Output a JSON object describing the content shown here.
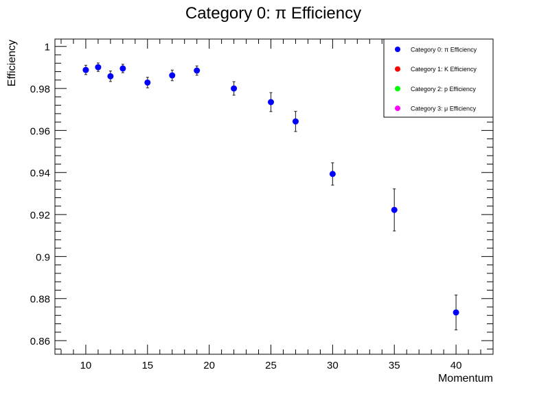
{
  "chart_data": {
    "type": "scatter",
    "title": "Category 0: π Efficiency",
    "xlabel": "Momentum",
    "ylabel": "Efficiency",
    "xlim": [
      7.5,
      43
    ],
    "ylim": [
      0.8535,
      1.0035
    ],
    "x_ticks": [
      10,
      15,
      20,
      25,
      30,
      35,
      40
    ],
    "y_ticks": [
      0.86,
      0.88,
      0.9,
      0.92,
      0.94,
      0.96,
      0.98,
      1
    ],
    "x_tick_labels": [
      "10",
      "15",
      "20",
      "25",
      "30",
      "35",
      "40"
    ],
    "y_tick_labels": [
      "0.86",
      "0.88",
      "0.9",
      "0.92",
      "0.94",
      "0.96",
      "0.98",
      "1"
    ],
    "grid": false,
    "legend_position": "top-right",
    "series": [
      {
        "name": "Category 0: π Efficiency",
        "color": "#0000ff",
        "points": [
          {
            "x": 10,
            "y": 0.9888,
            "err": 0.0022
          },
          {
            "x": 11,
            "y": 0.9901,
            "err": 0.002
          },
          {
            "x": 12,
            "y": 0.9858,
            "err": 0.0025
          },
          {
            "x": 13,
            "y": 0.9895,
            "err": 0.002
          },
          {
            "x": 15,
            "y": 0.9828,
            "err": 0.0025
          },
          {
            "x": 17,
            "y": 0.9862,
            "err": 0.0025
          },
          {
            "x": 19,
            "y": 0.9885,
            "err": 0.0022
          },
          {
            "x": 22,
            "y": 0.98,
            "err": 0.0032
          },
          {
            "x": 25,
            "y": 0.9735,
            "err": 0.0045
          },
          {
            "x": 27,
            "y": 0.9643,
            "err": 0.0048
          },
          {
            "x": 30,
            "y": 0.9393,
            "err": 0.0053
          },
          {
            "x": 35,
            "y": 0.9222,
            "err": 0.01
          },
          {
            "x": 40,
            "y": 0.8734,
            "err": 0.0083
          }
        ]
      }
    ],
    "legend": [
      {
        "label": "Category 0: π Efficiency",
        "color": "#0000ff"
      },
      {
        "label": "Category 1: K Efficiency",
        "color": "#ff0000"
      },
      {
        "label": "Category 2: p Efficiency",
        "color": "#00ff00"
      },
      {
        "label": "Category 3: μ Efficiency",
        "color": "#ff00ff"
      }
    ]
  }
}
